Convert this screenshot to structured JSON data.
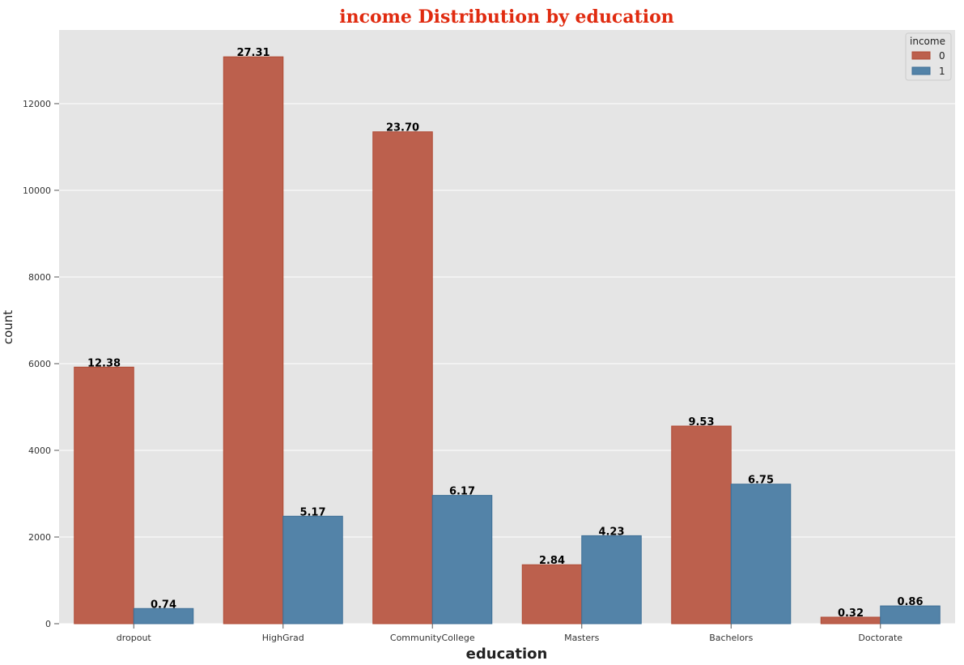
{
  "chart_data": {
    "type": "bar",
    "title": "income Distribution by education",
    "xlabel": "education",
    "ylabel": "count",
    "categories": [
      "dropout",
      "HighGrad",
      "CommunityCollege",
      "Masters",
      "Bachelors",
      "Doctorate"
    ],
    "series": [
      {
        "name": "0",
        "values": [
          5920,
          13080,
          11350,
          1360,
          4560,
          150
        ],
        "labels": [
          "12.38",
          "27.31",
          "23.70",
          "2.84",
          "9.53",
          "0.32"
        ]
      },
      {
        "name": "1",
        "values": [
          350,
          2480,
          2960,
          2030,
          3220,
          410
        ],
        "labels": [
          "0.74",
          "5.17",
          "6.17",
          "4.23",
          "6.75",
          "0.86"
        ]
      }
    ],
    "ylim": [
      0,
      13700
    ],
    "yticks": [
      0,
      2000,
      4000,
      6000,
      8000,
      10000,
      12000
    ],
    "grid": true,
    "legend": {
      "title": "income",
      "placement": "top-right"
    },
    "colors": {
      "series": [
        "#bc604d",
        "#5383a8"
      ],
      "edges": [
        "#b04a35",
        "#3d6e96"
      ],
      "title": "#e02b10",
      "background": "#e5e5e5",
      "grid": "#ffffff"
    }
  }
}
